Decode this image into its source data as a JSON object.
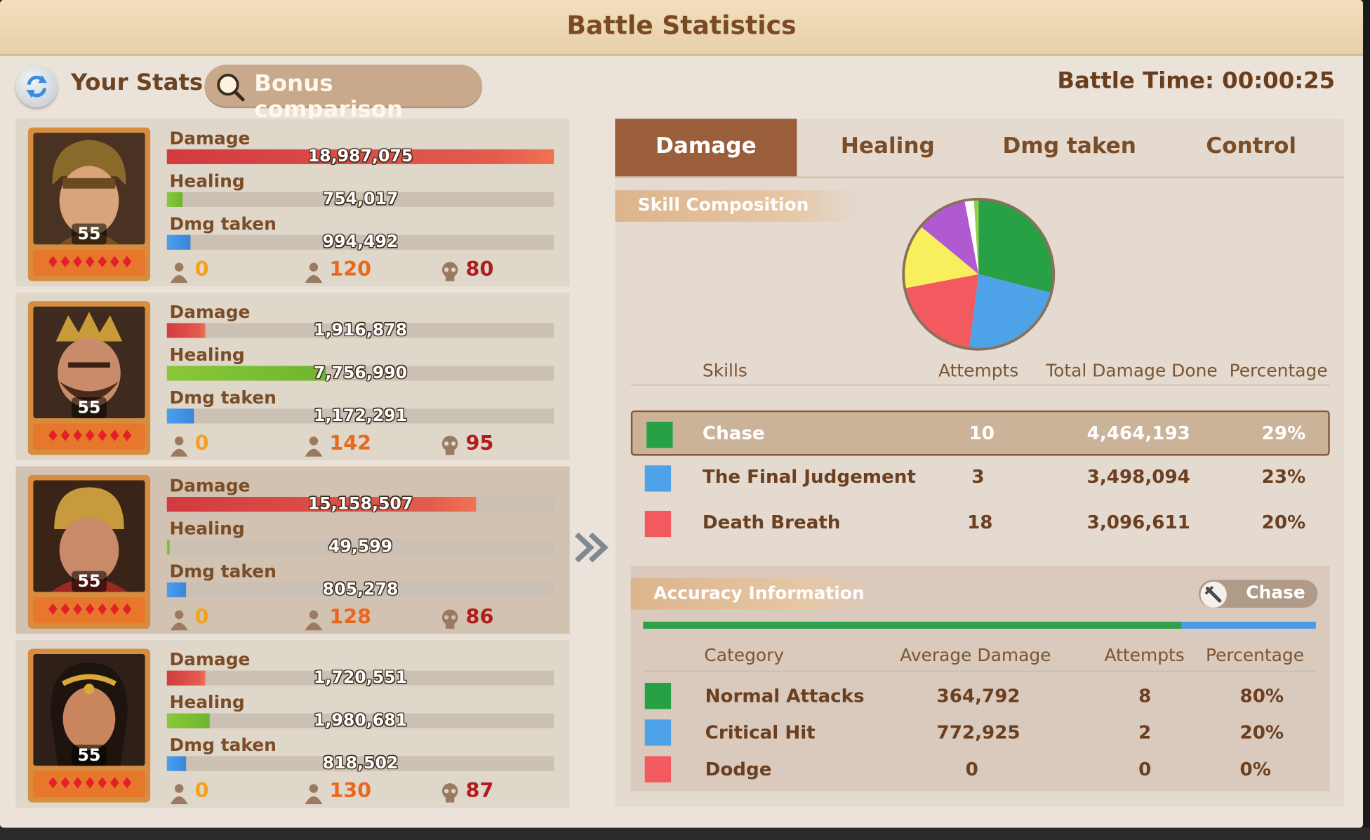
{
  "header": {
    "title": "Battle Statistics"
  },
  "topbar": {
    "your_stats": "Your Stats",
    "bonus_label": "Bonus comparison",
    "battle_time": "Battle Time: 00:00:25"
  },
  "labels": {
    "damage": "Damage",
    "healing": "Healing",
    "dmg_taken": "Dmg taken"
  },
  "commanders": [
    {
      "level": "55",
      "stars": "♦♦♦♦♦♦♦",
      "damage": "18,987,075",
      "damage_fraction": 1.0,
      "healing": "754,017",
      "healing_fraction": 0.04,
      "dmg_taken": "994,492",
      "dmg_taken_fraction": 0.06,
      "count_a": "0",
      "count_b": "120",
      "count_c": "80"
    },
    {
      "level": "55",
      "stars": "♦♦♦♦♦♦♦",
      "damage": "1,916,878",
      "damage_fraction": 0.1,
      "healing": "7,756,990",
      "healing_fraction": 0.41,
      "dmg_taken": "1,172,291",
      "dmg_taken_fraction": 0.07,
      "count_a": "0",
      "count_b": "142",
      "count_c": "95"
    },
    {
      "level": "55",
      "stars": "♦♦♦♦♦♦♦",
      "damage": "15,158,507",
      "damage_fraction": 0.8,
      "healing": "49,599",
      "healing_fraction": 0.005,
      "dmg_taken": "805,278",
      "dmg_taken_fraction": 0.05,
      "count_a": "0",
      "count_b": "128",
      "count_c": "86"
    },
    {
      "level": "55",
      "stars": "♦♦♦♦♦♦♦",
      "damage": "1,720,551",
      "damage_fraction": 0.1,
      "healing": "1,980,681",
      "healing_fraction": 0.11,
      "dmg_taken": "818,502",
      "dmg_taken_fraction": 0.05,
      "count_a": "0",
      "count_b": "130",
      "count_c": "87"
    }
  ],
  "tabs": [
    {
      "label": "Damage"
    },
    {
      "label": "Healing"
    },
    {
      "label": "Dmg taken"
    },
    {
      "label": "Control"
    }
  ],
  "skill": {
    "header": "Skill Composition",
    "columns": {
      "skills": "Skills",
      "attempts": "Attempts",
      "total": "Total Damage Done",
      "percentage": "Percentage"
    },
    "rows": [
      {
        "name": "Chase",
        "attempts": "10",
        "total": "4,464,193",
        "percentage": "29%",
        "color": "#27a046"
      },
      {
        "name": "The Final Judgement",
        "attempts": "3",
        "total": "3,498,094",
        "percentage": "23%",
        "color": "#4ea3e8"
      },
      {
        "name": "Death Breath",
        "attempts": "18",
        "total": "3,096,611",
        "percentage": "20%",
        "color": "#f25a5f"
      }
    ]
  },
  "chart_data": {
    "type": "pie",
    "slices": [
      {
        "value": 29,
        "color": "#27a046"
      },
      {
        "value": 23,
        "color": "#4ea3e8"
      },
      {
        "value": 20,
        "color": "#f25a5f"
      },
      {
        "value": 14,
        "color": "#f8ef5c"
      },
      {
        "value": 11,
        "color": "#b05ad2"
      },
      {
        "value": 2,
        "color": "#ffffff"
      },
      {
        "value": 1,
        "color": "#8ed04a"
      }
    ]
  },
  "accuracy": {
    "header": "Accuracy Information",
    "button": "Chase",
    "bar_green_fraction": 0.8,
    "columns": {
      "category": "Category",
      "avg": "Average Damage",
      "attempts": "Attempts",
      "percentage": "Percentage"
    },
    "rows": [
      {
        "name": "Normal Attacks",
        "avg": "364,792",
        "attempts": "8",
        "percentage": "80%",
        "color": "#27a046"
      },
      {
        "name": "Critical Hit",
        "avg": "772,925",
        "attempts": "2",
        "percentage": "20%",
        "color": "#4ea3e8"
      },
      {
        "name": "Dodge",
        "avg": "0",
        "attempts": "0",
        "percentage": "0%",
        "color": "#f25a5f"
      }
    ]
  }
}
